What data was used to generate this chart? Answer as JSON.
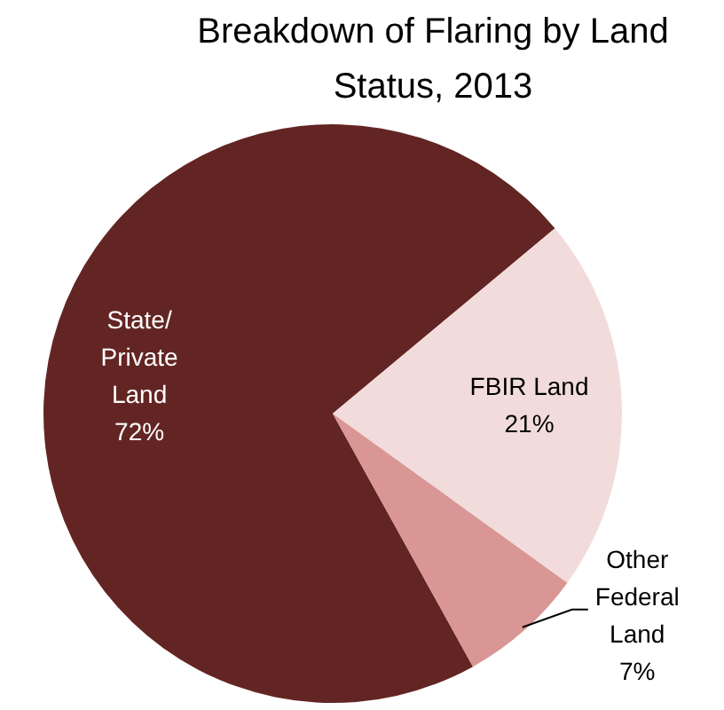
{
  "chart_data": {
    "type": "pie",
    "title": "Breakdown of Flaring by Land Status, 2013",
    "categories": [
      "State/Private Land",
      "FBIR Land",
      "Other Federal Land"
    ],
    "values": [
      72,
      21,
      7
    ],
    "colors": [
      "#632523",
      "#f2dcdb",
      "#d99694"
    ],
    "value_labels": [
      "72%",
      "21%",
      "7%"
    ],
    "legend": false
  }
}
